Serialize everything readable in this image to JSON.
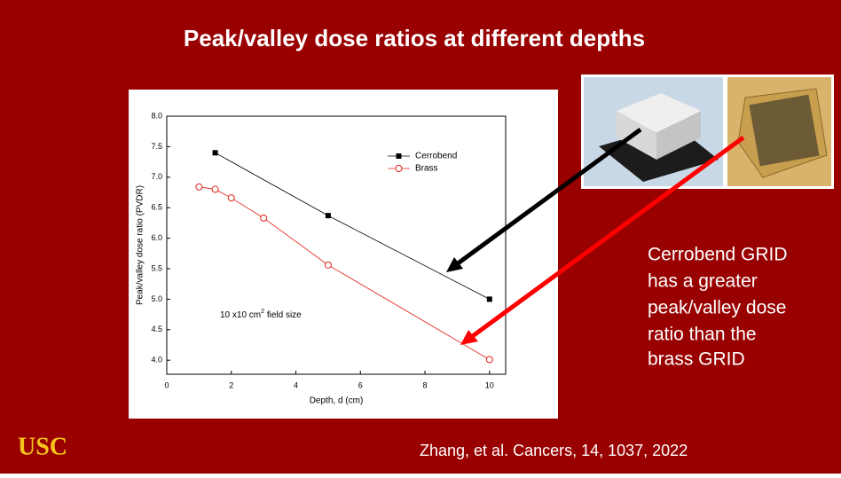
{
  "title": "Peak/valley dose ratios at different depths",
  "chart_data": {
    "type": "line",
    "xlabel": "Depth, d (cm)",
    "ylabel": "Peak/valley dose ratio (PVDR)",
    "annotation": [
      "10 x10 cm",
      "2",
      " field size"
    ],
    "xlim": [
      0,
      10.5
    ],
    "xticks": [
      0,
      2,
      4,
      6,
      8,
      10
    ],
    "ylim": [
      3.77,
      8.0
    ],
    "yticks": [
      {
        "value": 4.0,
        "label": "4.0"
      },
      {
        "value": 4.5,
        "label": "4.5"
      },
      {
        "value": 5.0,
        "label": "5.0"
      },
      {
        "value": 5.5,
        "label": "5.5"
      },
      {
        "value": 6.0,
        "label": "6.0"
      },
      {
        "value": 6.5,
        "label": "6.5"
      },
      {
        "value": 7.0,
        "label": "7.0"
      },
      {
        "value": 7.5,
        "label": "7.5"
      },
      {
        "value": 8.0,
        "label": "8.0"
      }
    ],
    "legend": "upper right",
    "series": [
      {
        "name": "Cerrobend",
        "color": "#000000",
        "marker": "square",
        "x": [
          1.5,
          5,
          10
        ],
        "values": [
          7.4,
          6.37,
          5.0
        ]
      },
      {
        "name": "Brass",
        "color": "#e0231b",
        "marker": "circle",
        "x": [
          1,
          1.5,
          2,
          3,
          5,
          10
        ],
        "values": [
          6.84,
          6.8,
          6.66,
          6.33,
          5.56,
          4.01
        ]
      }
    ]
  },
  "note": [
    "Cerrobend GRID",
    "has a greater",
    "peak/valley dose",
    "ratio than the",
    "brass GRID"
  ],
  "citation": "Zhang, et al.  Cancers, 14, 1037, 2022",
  "logo": "USC"
}
